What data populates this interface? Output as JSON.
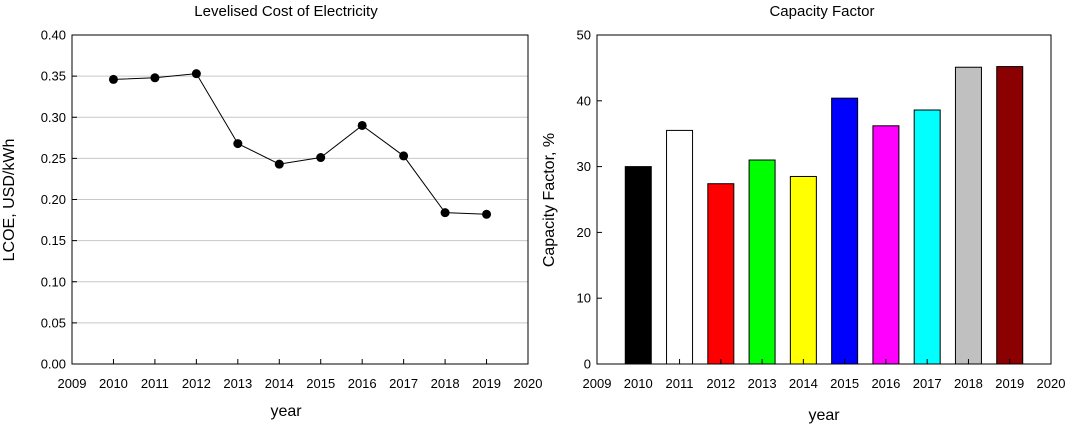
{
  "chart_data": [
    {
      "type": "line",
      "title": "Levelised Cost of Electricity",
      "xlabel": "year",
      "ylabel": "LCOE, USD/kWh",
      "xlim": [
        2009,
        2020
      ],
      "ylim": [
        0,
        0.4
      ],
      "grid": true,
      "x_ticks": [
        "2009",
        "2010",
        "2011",
        "2012",
        "2013",
        "2014",
        "2015",
        "2016",
        "2017",
        "2018",
        "2019",
        "2020"
      ],
      "y_ticks": [
        "0.00",
        "0.05",
        "0.10",
        "0.15",
        "0.20",
        "0.25",
        "0.30",
        "0.35",
        "0.40"
      ],
      "x": [
        2010,
        2011,
        2012,
        2013,
        2014,
        2015,
        2016,
        2017,
        2018,
        2019
      ],
      "values": [
        0.346,
        0.348,
        0.353,
        0.268,
        0.243,
        0.251,
        0.29,
        0.253,
        0.184,
        0.182
      ]
    },
    {
      "type": "bar",
      "title": "Capacity Factor",
      "xlabel": "year",
      "ylabel": "Capacity Factor, %",
      "xlim": [
        2009,
        2020
      ],
      "ylim": [
        0,
        50
      ],
      "grid": false,
      "x_ticks": [
        "2009",
        "2010",
        "2011",
        "2012",
        "2013",
        "2014",
        "2015",
        "2016",
        "2017",
        "2018",
        "2019",
        "2020"
      ],
      "y_ticks": [
        "0",
        "10",
        "20",
        "30",
        "40",
        "50"
      ],
      "x": [
        2010,
        2011,
        2012,
        2013,
        2014,
        2015,
        2016,
        2017,
        2018,
        2019
      ],
      "values": [
        30.0,
        35.5,
        27.4,
        31.0,
        28.5,
        40.4,
        36.2,
        38.6,
        45.1,
        45.2
      ],
      "colors": [
        "#000000",
        "#ffffff",
        "#ff0000",
        "#00ff00",
        "#ffff00",
        "#0000ff",
        "#ff00ff",
        "#00ffff",
        "#c0c0c0",
        "#8b0000"
      ]
    }
  ]
}
